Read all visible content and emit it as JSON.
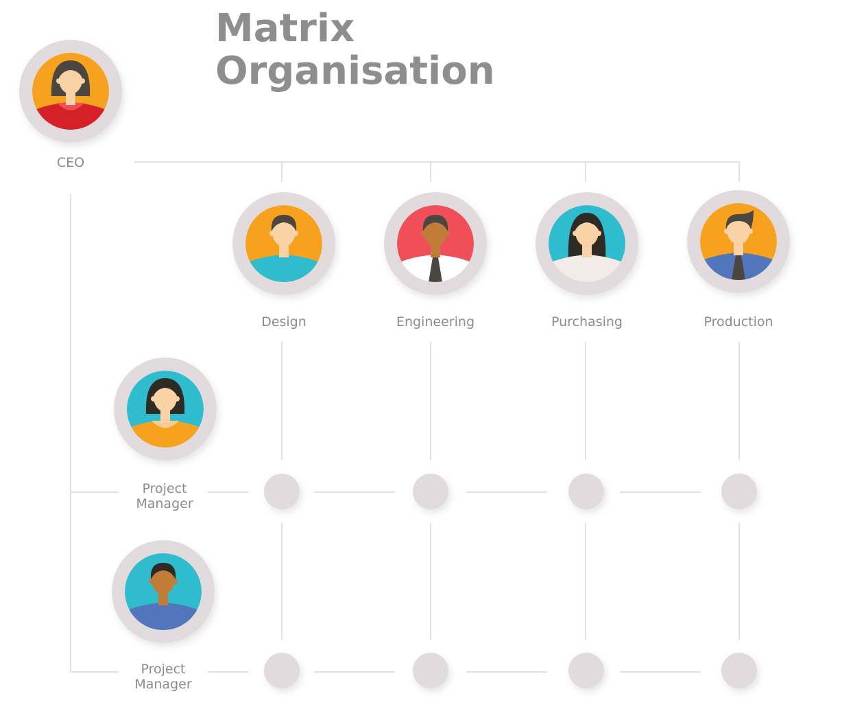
{
  "title": {
    "line1": "Matrix",
    "line2": "Organisation"
  },
  "ceo": {
    "label": "CEO",
    "avatar": {
      "bg": "#f7a21e",
      "skin": "#f9d3a5",
      "hair": "#4b463f",
      "shirt": "#d52028",
      "collar": "#f04f5a",
      "hair_style": "bob",
      "tie": false
    }
  },
  "departments": [
    {
      "label": "Design",
      "avatar": {
        "bg": "#f7a21e",
        "skin": "#f9d3a5",
        "hair": "#4b463f",
        "shirt": "#2fbccf",
        "collar": "#2fbccf",
        "hair_style": "short",
        "tie": false
      }
    },
    {
      "label": "Engineering",
      "avatar": {
        "bg": "#f04f5a",
        "skin": "#c17d37",
        "hair": "#4b463f",
        "shirt": "#ffffff",
        "collar": "#ffffff",
        "hair_style": "short",
        "tie": true
      }
    },
    {
      "label": "Purchasing",
      "avatar": {
        "bg": "#2fbccf",
        "skin": "#f9d3a5",
        "hair": "#2e2a24",
        "shirt": "#f1ece8",
        "collar": "#f1ece8",
        "hair_style": "long",
        "tie": false
      }
    },
    {
      "label": "Production",
      "avatar": {
        "bg": "#f7a21e",
        "skin": "#f9d3a5",
        "hair": "#4b463f",
        "shirt": "#5176bb",
        "collar": "#5176bb",
        "hair_style": "quiff",
        "tie": true
      }
    }
  ],
  "project_managers": [
    {
      "label_line1": "Project",
      "label_line2": "Manager",
      "avatar": {
        "bg": "#2fbccf",
        "skin": "#f9d3a5",
        "hair": "#2e2a24",
        "shirt": "#f7a21e",
        "collar": "#f3cc8e",
        "hair_style": "bob",
        "tie": false
      }
    },
    {
      "label_line1": "Project",
      "label_line2": "Manager",
      "avatar": {
        "bg": "#2fbccf",
        "skin": "#c17d37",
        "hair": "#2e2a24",
        "shirt": "#5176bb",
        "collar": "#5176bb",
        "hair_style": "short",
        "tie": false
      }
    }
  ],
  "colors": {
    "line": "#e4dfe0",
    "node": "#e2dbdd",
    "text": "#8c8c8c"
  }
}
